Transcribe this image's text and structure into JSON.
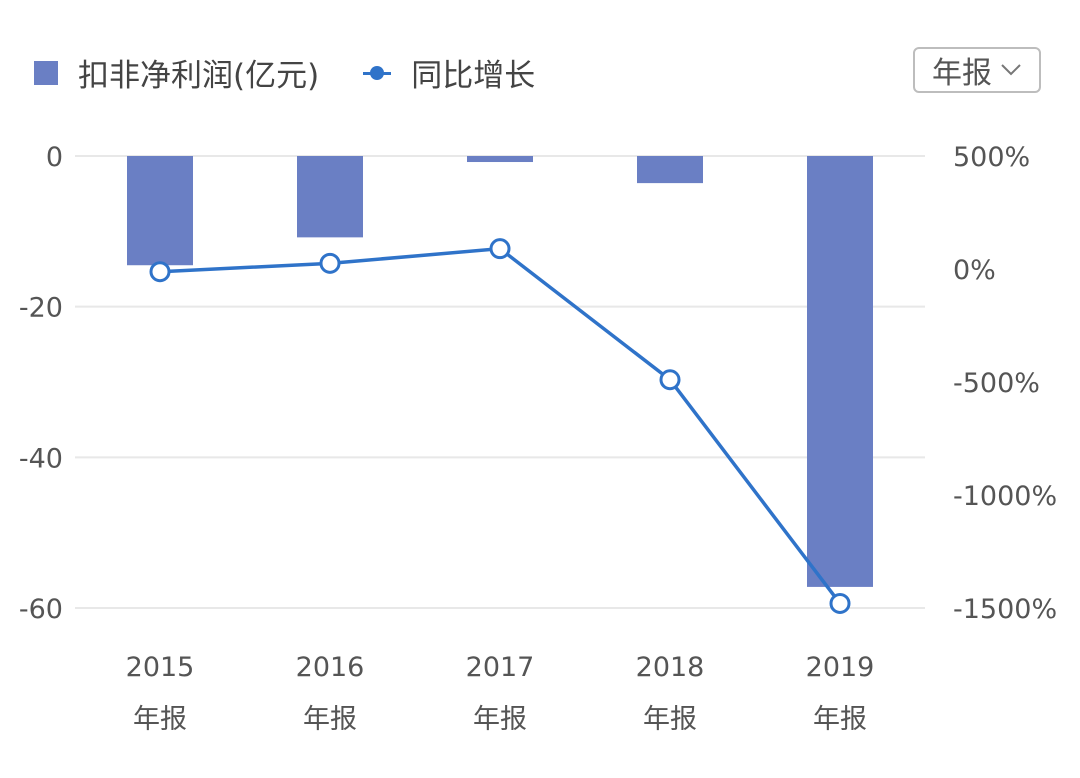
{
  "colors": {
    "bar": "#6a7fc4",
    "line": "#2f73c9",
    "grid": "#e8e8e8",
    "text": "#555555"
  },
  "legend": {
    "bar_label": "扣非净利润(亿元)",
    "line_label": "同比增长"
  },
  "period_selector": {
    "label": "年报",
    "icon": "chevron-down-icon"
  },
  "chart_data": {
    "type": "bar",
    "categories": [
      "2015年报",
      "2016年报",
      "2017年报",
      "2018年报",
      "2019年报"
    ],
    "category_lines": [
      [
        "2015",
        "年报"
      ],
      [
        "2016",
        "年报"
      ],
      [
        "2017",
        "年报"
      ],
      [
        "2018",
        "年报"
      ],
      [
        "2019",
        "年报"
      ]
    ],
    "series": [
      {
        "name": "扣非净利润(亿元)",
        "type": "bar",
        "axis": "left",
        "values": [
          -14.5,
          -10.8,
          -0.8,
          -3.6,
          -57.2
        ]
      },
      {
        "name": "同比增长",
        "type": "line",
        "axis": "right",
        "values": [
          -12,
          25,
          90,
          -490,
          -1480
        ]
      }
    ],
    "y_left": {
      "ticks": [
        0,
        -20,
        -40,
        -60
      ],
      "tick_labels": [
        "0",
        "-20",
        "-40",
        "-60"
      ],
      "range": [
        -60,
        0
      ]
    },
    "y_right": {
      "ticks": [
        500,
        0,
        -500,
        -1000,
        -1500
      ],
      "tick_labels": [
        "500%",
        "0%",
        "-500%",
        "-1000%",
        "-1500%"
      ],
      "range": [
        -1500,
        500
      ]
    },
    "grid": true,
    "legend_position": "top-left"
  }
}
